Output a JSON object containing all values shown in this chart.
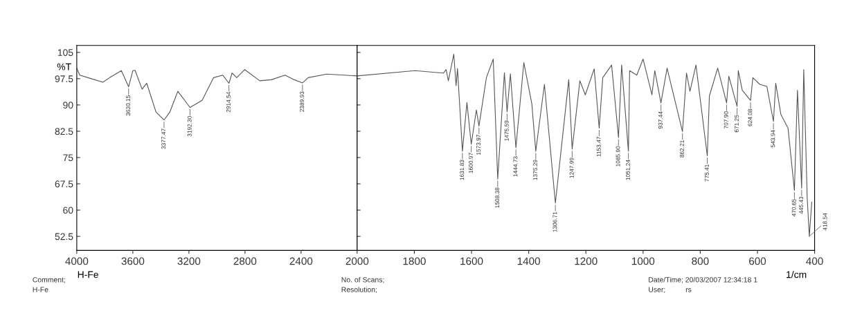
{
  "chart_data": [
    {
      "type": "line",
      "xlabel": "H-Fe",
      "ylabel": "%T",
      "xlim": [
        4000,
        2000
      ],
      "ylim": [
        48.5,
        107
      ],
      "xticks": [
        4000,
        3600,
        3200,
        2800,
        2400
      ],
      "yticks": [
        105,
        97.5,
        90,
        82.5,
        75,
        67.5,
        60,
        52.5
      ],
      "grid": false,
      "legend": false,
      "marker": "none",
      "line_style": "solid",
      "series": [
        {
          "color": "#555555",
          "x": [
            4000,
            3979,
            3896,
            3814,
            3765,
            3682,
            3630.15,
            3600,
            3584,
            3534,
            3501,
            3435,
            3377.47,
            3336,
            3279,
            3192.3,
            3106,
            3024,
            2958,
            2914.54,
            2892,
            2859,
            2802,
            2695,
            2612,
            2514,
            2449,
            2389.93,
            2349,
            2217,
            2000
          ],
          "values": [
            100.5,
            98.5,
            97.5,
            96.5,
            97.8,
            99.8,
            95.2,
            99.8,
            99.9,
            94.5,
            96.2,
            88.0,
            85.7,
            88.0,
            93.9,
            89.3,
            91.3,
            97.8,
            98.5,
            96.2,
            99.1,
            97.8,
            100.1,
            96.9,
            97.2,
            98.5,
            97.2,
            96.3,
            97.8,
            98.8,
            98.3
          ]
        }
      ],
      "annotations": [
        {
          "text": "3630.15",
          "x": 3630.15,
          "y": 95.2
        },
        {
          "text": "3377.47",
          "x": 3377.47,
          "y": 85.7
        },
        {
          "text": "3192.30",
          "x": 3192.3,
          "y": 89.3
        },
        {
          "text": "2914.54",
          "x": 2914.54,
          "y": 96.2
        },
        {
          "text": "2389.93",
          "x": 2389.93,
          "y": 96.3
        },
        "Comment;\nH-Fe"
      ]
    },
    {
      "type": "line",
      "xlabel": "1/cm",
      "xlim": [
        2000,
        400
      ],
      "ylim": [
        48.5,
        107
      ],
      "xticks": [
        2000,
        1800,
        1600,
        1400,
        1200,
        1000,
        800,
        600,
        400
      ],
      "tick_labels": "x",
      "grid": false,
      "legend": false,
      "marker": "none",
      "line_style": "solid",
      "series": [
        {
          "color": "#555555",
          "x": [
            2000,
            1798,
            1698,
            1689,
            1681,
            1662,
            1654,
            1649,
            1631.83,
            1616,
            1600.97,
            1583,
            1573.97,
            1548,
            1524,
            1508.38,
            1485,
            1475.59,
            1464,
            1444.73,
            1417,
            1389,
            1375.29,
            1345,
            1306.71,
            1260,
            1247.99,
            1221,
            1202,
            1171,
            1153.47,
            1141,
            1110,
            1085.9,
            1075,
            1051.24,
            1047,
            1022,
            1000,
            969,
            959,
            937.44,
            916,
            862.21,
            848,
            836,
            815,
            775.41,
            768,
            739,
            707.9,
            700,
            671.25,
            667,
            653,
            624.08,
            616,
            592,
            567,
            543.94,
            536,
            518,
            493,
            470.65,
            460,
            445.43,
            438,
            426,
            418.54,
            410
          ],
          "values": [
            98.3,
            99.8,
            99.1,
            100.1,
            96.9,
            104.5,
            95.5,
            100.4,
            76.8,
            90.7,
            78.8,
            88.6,
            84.0,
            97.8,
            103.1,
            68.9,
            99.2,
            88.0,
            98.9,
            77.8,
            102.1,
            90.3,
            76.8,
            95.9,
            62.0,
            97.2,
            77.4,
            96.9,
            92.9,
            100.3,
            83.4,
            97.8,
            101.4,
            80.7,
            101.4,
            76.8,
            99.8,
            98.5,
            103.1,
            92.9,
            99.8,
            90.6,
            100.5,
            82.4,
            99.1,
            93.9,
            101.4,
            75.5,
            92.6,
            100.5,
            90.6,
            98.2,
            89.6,
            99.8,
            94.2,
            91.3,
            97.8,
            95.9,
            95.3,
            85.3,
            96.2,
            87.3,
            83.4,
            65.6,
            94.2,
            66.3,
            100.1,
            63.6,
            52.5,
            62.3
          ]
        }
      ],
      "annotations": [
        {
          "text": "1631.83",
          "x": 1631.83,
          "y": 76.8
        },
        {
          "text": "1600.97",
          "x": 1600.97,
          "y": 78.8
        },
        {
          "text": "1573.97",
          "x": 1573.97,
          "y": 84.0
        },
        {
          "text": "1508.38",
          "x": 1508.38,
          "y": 68.9
        },
        {
          "text": "1475.59",
          "x": 1475.59,
          "y": 88.0
        },
        {
          "text": "1444.73",
          "x": 1444.73,
          "y": 77.8
        },
        {
          "text": "1375.29",
          "x": 1375.29,
          "y": 76.8
        },
        {
          "text": "1306.71",
          "x": 1306.71,
          "y": 62.0
        },
        {
          "text": "1247.99",
          "x": 1247.99,
          "y": 77.4
        },
        {
          "text": "1153.47",
          "x": 1153.47,
          "y": 83.4
        },
        {
          "text": "1085.90",
          "x": 1085.9,
          "y": 80.7
        },
        {
          "text": "1051.24",
          "x": 1051.24,
          "y": 76.8
        },
        {
          "text": "937.44",
          "x": 937.44,
          "y": 90.6
        },
        {
          "text": "862.21",
          "x": 862.21,
          "y": 82.4
        },
        {
          "text": "775.41",
          "x": 775.41,
          "y": 75.5
        },
        {
          "text": "707.90",
          "x": 707.9,
          "y": 90.6
        },
        {
          "text": "671.25",
          "x": 671.25,
          "y": 89.6
        },
        {
          "text": "624.08",
          "x": 624.08,
          "y": 91.3
        },
        {
          "text": "543.94",
          "x": 543.94,
          "y": 85.3
        },
        {
          "text": "470.65",
          "x": 470.65,
          "y": 65.6
        },
        {
          "text": "445.43",
          "x": 445.43,
          "y": 66.3
        },
        {
          "text": "418.54",
          "x": 418.54,
          "y": 52.5
        },
        "No. of Scans;\nResolution;",
        "Date/Time; 20/03/2007 12:34:18 1\nUser;          rs"
      ]
    }
  ]
}
